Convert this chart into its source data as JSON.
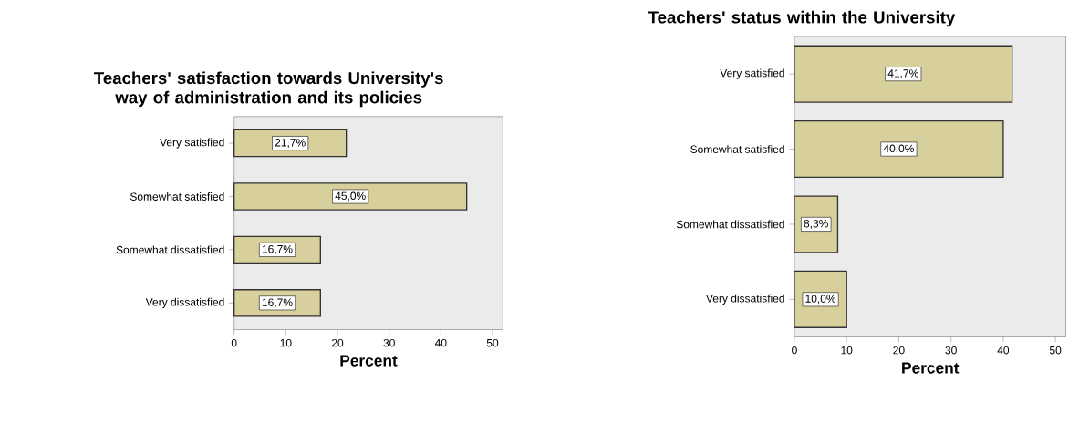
{
  "chart_data": [
    {
      "type": "bar",
      "orientation": "horizontal",
      "title": "Teachers' satisfaction towards University's way of administration and its policies",
      "xlabel": "Percent",
      "categories": [
        "Very satisfied",
        "Somewhat satisfied",
        "Somewhat dissatisfied",
        "Very dissatisfied"
      ],
      "values": [
        21.7,
        45.0,
        16.7,
        16.7
      ],
      "value_labels": [
        "21,7%",
        "45,0%",
        "16,7%",
        "16,7%"
      ],
      "color": "#d7cf9c",
      "xlim": [
        0,
        52
      ],
      "xticks": [
        0,
        10,
        20,
        30,
        40,
        50
      ]
    },
    {
      "type": "bar",
      "orientation": "horizontal",
      "title": "Teachers' status within the University",
      "xlabel": "Percent",
      "categories": [
        "Very satisfied",
        "Somewhat satisfied",
        "Somewhat dissatisfied",
        "Very dissatisfied"
      ],
      "values": [
        41.7,
        40.0,
        8.3,
        10.0
      ],
      "value_labels": [
        "41,7%",
        "40,0%",
        "8,3%",
        "10,0%"
      ],
      "color": "#d7cf9c",
      "xlim": [
        0,
        52
      ],
      "xticks": [
        0,
        10,
        20,
        30,
        40,
        50
      ]
    }
  ]
}
